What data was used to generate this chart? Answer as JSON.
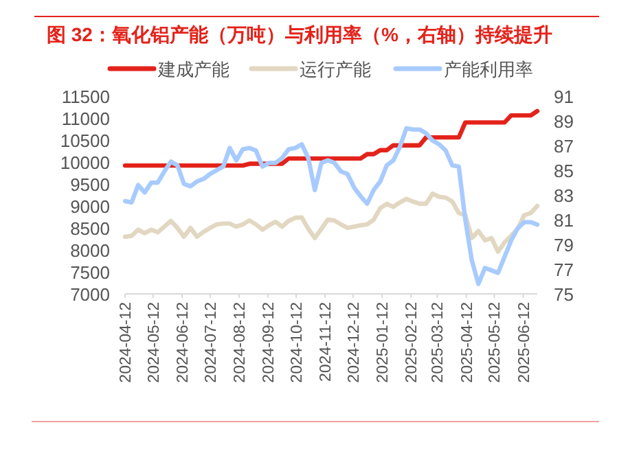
{
  "chart_data": {
    "type": "line",
    "title": "图 32：氧化铝产能（万吨）与利用率（%，右轴）持续提升",
    "x": [
      "2024-04-12",
      "2024-04-19",
      "2024-04-26",
      "2024-05-03",
      "2024-05-10",
      "2024-05-17",
      "2024-05-24",
      "2024-05-31",
      "2024-06-07",
      "2024-06-14",
      "2024-06-21",
      "2024-06-28",
      "2024-07-05",
      "2024-07-12",
      "2024-07-19",
      "2024-07-26",
      "2024-08-02",
      "2024-08-09",
      "2024-08-16",
      "2024-08-23",
      "2024-08-30",
      "2024-09-06",
      "2024-09-13",
      "2024-09-20",
      "2024-09-27",
      "2024-10-04",
      "2024-10-11",
      "2024-10-18",
      "2024-10-25",
      "2024-11-01",
      "2024-11-08",
      "2024-11-15",
      "2024-11-22",
      "2024-11-29",
      "2024-12-06",
      "2024-12-13",
      "2024-12-20",
      "2024-12-27",
      "2025-01-03",
      "2025-01-10",
      "2025-01-17",
      "2025-01-24",
      "2025-01-31",
      "2025-02-07",
      "2025-02-14",
      "2025-02-21",
      "2025-02-28",
      "2025-03-07",
      "2025-03-14",
      "2025-03-21",
      "2025-03-28",
      "2025-04-04",
      "2025-04-11",
      "2025-04-18",
      "2025-04-25",
      "2025-05-02",
      "2025-05-09",
      "2025-05-16",
      "2025-05-23",
      "2025-05-30",
      "2025-06-06",
      "2025-06-13",
      "2025-06-20",
      "2025-06-27"
    ],
    "series": [
      {
        "name": "建成产能",
        "color": "#e3231b",
        "values": [
          9920,
          9920,
          9920,
          9920,
          9920,
          9920,
          9920,
          9920,
          9920,
          9920,
          9920,
          9920,
          9920,
          9920,
          9920,
          9920,
          9920,
          9920,
          9920,
          9960,
          9960,
          9960,
          9960,
          9960,
          9960,
          10080,
          10080,
          10080,
          10080,
          10080,
          10080,
          10080,
          10080,
          10080,
          10080,
          10080,
          10080,
          10180,
          10180,
          10270,
          10270,
          10380,
          10380,
          10380,
          10380,
          10380,
          10560,
          10560,
          10560,
          10560,
          10560,
          10560,
          10900,
          10900,
          10900,
          10900,
          10900,
          10900,
          10900,
          11060,
          11060,
          11060,
          11060,
          11160
        ]
      },
      {
        "name": "运行产能",
        "color": "#e2d7c1",
        "values": [
          8300,
          8320,
          8460,
          8380,
          8460,
          8400,
          8530,
          8660,
          8500,
          8300,
          8500,
          8300,
          8410,
          8500,
          8580,
          8600,
          8600,
          8530,
          8580,
          8670,
          8580,
          8460,
          8560,
          8640,
          8530,
          8660,
          8730,
          8740,
          8480,
          8270,
          8480,
          8690,
          8670,
          8580,
          8500,
          8530,
          8560,
          8580,
          8690,
          8950,
          9050,
          8980,
          9080,
          9160,
          9100,
          9050,
          9050,
          9280,
          9210,
          9190,
          9100,
          8840,
          8790,
          8270,
          8430,
          8220,
          8270,
          7960,
          8170,
          8320,
          8480,
          8790,
          8840,
          9000
        ]
      },
      {
        "name": "产能利用率",
        "color": "#a8cbff",
        "axis": "y2",
        "values": [
          82.5,
          82.4,
          83.8,
          83.2,
          84.0,
          84.0,
          84.9,
          85.7,
          85.4,
          83.9,
          83.7,
          84.1,
          84.3,
          84.7,
          85.0,
          85.3,
          86.8,
          85.8,
          86.7,
          86.8,
          86.6,
          85.3,
          85.6,
          85.6,
          86.0,
          86.7,
          86.8,
          87.1,
          86.0,
          83.4,
          85.6,
          85.8,
          85.6,
          84.9,
          84.7,
          83.6,
          82.9,
          82.3,
          83.4,
          84.1,
          85.4,
          85.8,
          86.9,
          88.4,
          88.3,
          88.3,
          88.0,
          87.4,
          87.1,
          86.6,
          85.4,
          85.3,
          81.0,
          77.7,
          75.8,
          77.1,
          76.9,
          76.7,
          78.0,
          79.3,
          80.3,
          80.8,
          80.8,
          80.6
        ]
      }
    ],
    "xlim": [
      "2024-04-12",
      "2025-06-27"
    ],
    "xticks": [
      "2024-04-12",
      "2024-05-12",
      "2024-06-12",
      "2024-07-12",
      "2024-08-12",
      "2024-09-12",
      "2024-10-12",
      "2024-11-12",
      "2024-12-12",
      "2025-01-12",
      "2025-02-12",
      "2025-03-12",
      "2025-04-12",
      "2025-05-12",
      "2025-06-12"
    ],
    "ylim": [
      7000,
      11500
    ],
    "yticks": [
      7000,
      7500,
      8000,
      8500,
      9000,
      9500,
      10000,
      10500,
      11000,
      11500
    ],
    "y2lim": [
      75,
      91
    ],
    "y2ticks": [
      75,
      77,
      79,
      81,
      83,
      85,
      87,
      89,
      91
    ],
    "legend": "top",
    "grid": false,
    "marker": "none",
    "line_style": "solid"
  }
}
